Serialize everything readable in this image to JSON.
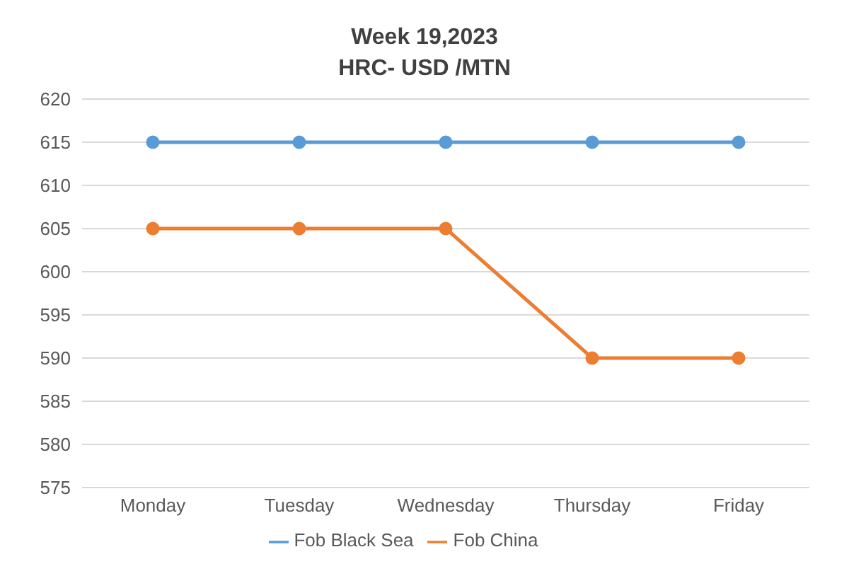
{
  "chart_data": {
    "type": "line",
    "title": "Week 19,2023",
    "subtitle": "HRC- USD /MTN",
    "categories": [
      "Monday",
      "Tuesday",
      "Wednesday",
      "Thursday",
      "Friday"
    ],
    "series": [
      {
        "name": "Fob Black Sea",
        "color": "#5b9bd5",
        "values": [
          615,
          615,
          615,
          615,
          615
        ]
      },
      {
        "name": "Fob China",
        "color": "#ed7d31",
        "values": [
          605,
          605,
          605,
          590,
          590
        ]
      }
    ],
    "ylim": [
      575,
      620
    ],
    "yticks": [
      575,
      580,
      585,
      590,
      595,
      600,
      605,
      610,
      615,
      620
    ],
    "grid": "y",
    "legend": "bottom",
    "marker": "circle",
    "line_style": "solid"
  }
}
